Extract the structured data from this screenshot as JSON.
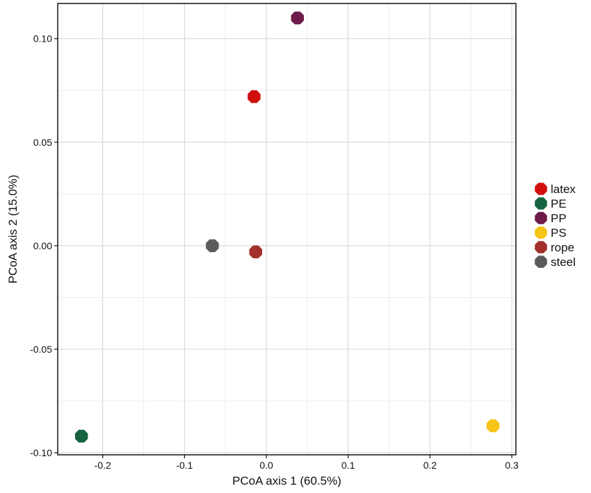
{
  "chart_data": {
    "type": "scatter",
    "xlabel": "PCoA axis 1 (60.5%)",
    "ylabel": "PCoA axis 2 (15.0%)",
    "xlim": [
      -0.255,
      0.305
    ],
    "ylim": [
      -0.101,
      0.117
    ],
    "x_ticks": [
      -0.2,
      -0.1,
      0.0,
      0.1,
      0.2,
      0.3
    ],
    "x_tick_labels": [
      "-0.2",
      "-0.1",
      "0.0",
      "0.1",
      "0.2",
      "0.3"
    ],
    "y_ticks": [
      -0.1,
      -0.05,
      0.0,
      0.05,
      0.1
    ],
    "y_tick_labels": [
      "-0.10",
      "-0.05",
      "0.00",
      "0.05",
      "0.10"
    ],
    "grid": true,
    "legend_position": "right",
    "series": [
      {
        "name": "latex",
        "color": "#d10f0f",
        "x": -0.015,
        "y": 0.072
      },
      {
        "name": "PE",
        "color": "#17633f",
        "x": -0.226,
        "y": -0.092
      },
      {
        "name": "PP",
        "color": "#6e1a4b",
        "x": 0.038,
        "y": 0.11
      },
      {
        "name": "PS",
        "color": "#f5c414",
        "x": 0.277,
        "y": -0.087
      },
      {
        "name": "rope",
        "color": "#a1312a",
        "x": -0.013,
        "y": -0.003
      },
      {
        "name": "steel",
        "color": "#5a5a5a",
        "x": -0.066,
        "y": 0.0
      }
    ]
  }
}
